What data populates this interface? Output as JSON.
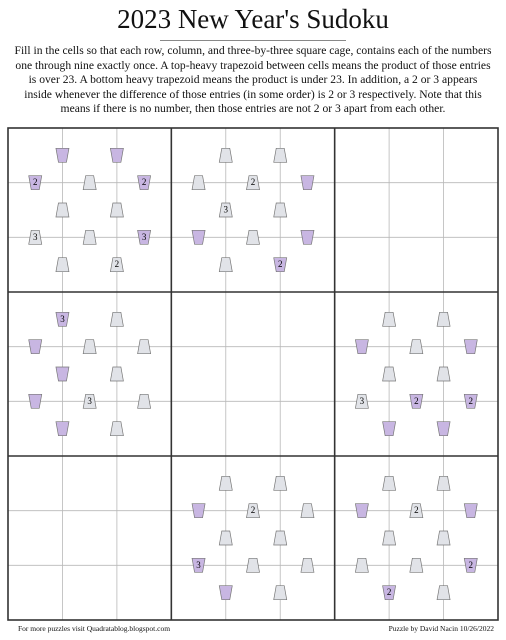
{
  "header": {
    "title": "2023 New Year's Sudoku",
    "instructions": [
      "Fill in the cells so that each row, column, and three-by-three square cage, contains each of the numbers",
      "one through nine exactly once. A top-heavy trapezoid between cells means the product of those entries",
      "is over 23.  A bottom heavy trapezoid means the product is under 23.  In addition, a 2 or 3 appears",
      "inside whenever the difference of those entries (in some order) is 2 or 3 respectively. Note that this",
      "means if there is no number, then those entries are not 2 or 3 apart from each other."
    ]
  },
  "clue_labels": [
    "2",
    "2",
    "3",
    "3",
    "2",
    "2",
    "3",
    "2",
    "3",
    "3",
    "3",
    "2",
    "2",
    "2",
    "3",
    "2",
    "2",
    "2"
  ],
  "footer": {
    "left": "For more puzzles visit Quadratablog.blogspot.com",
    "right": "Puzzle by David Nacin 10/26/2022"
  }
}
